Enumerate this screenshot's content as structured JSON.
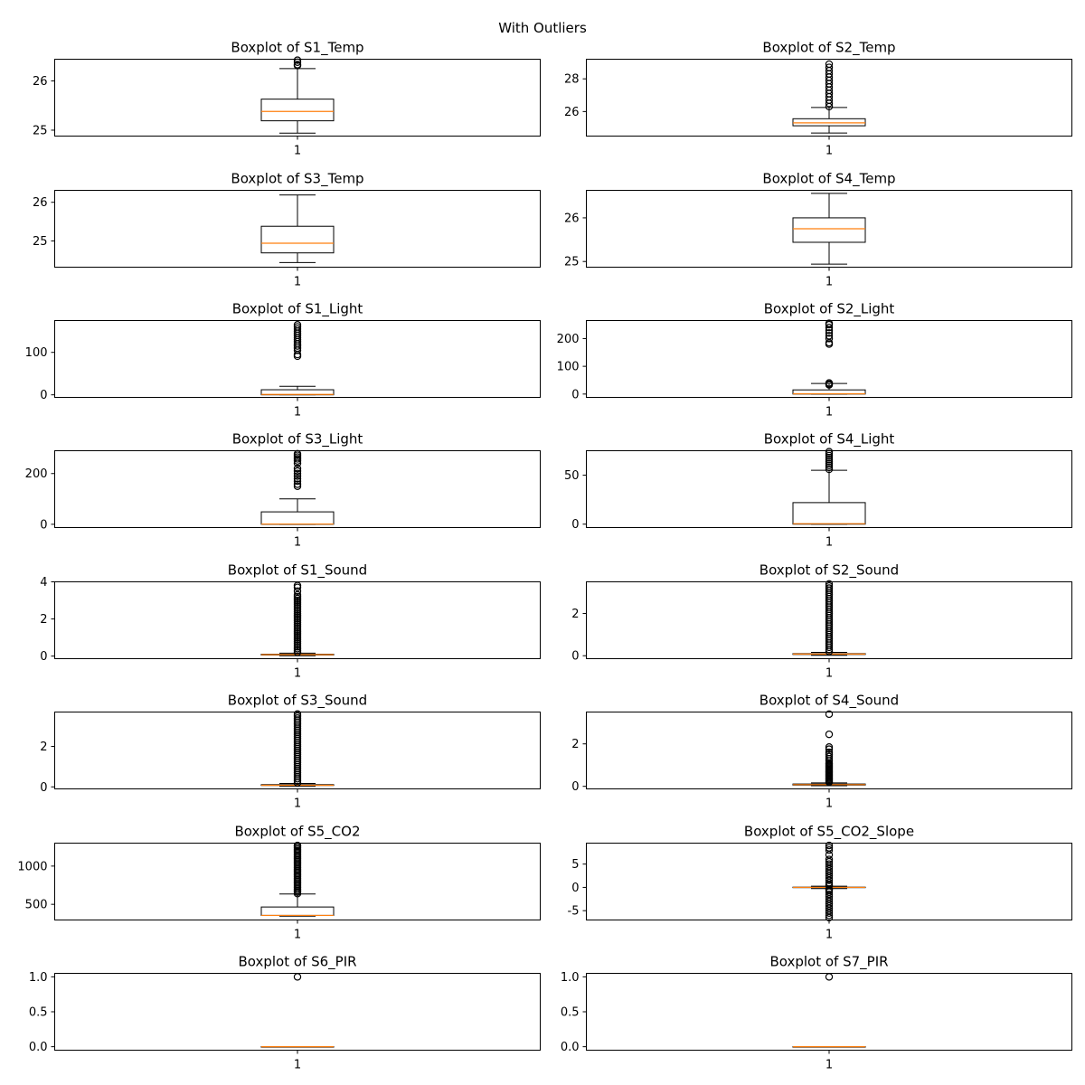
{
  "figure": {
    "suptitle": "With Outliers"
  },
  "colors": {
    "median": "#ff7f0e",
    "box": "#000000",
    "background": "#ffffff"
  },
  "chart_data": [
    {
      "type": "boxplot",
      "title": "Boxplot of S1_Temp",
      "xtick": "1",
      "ylim": [
        24.88,
        26.44
      ],
      "yticks": [
        25,
        26
      ],
      "whisker_low": 24.94,
      "q1": 25.19,
      "median": 25.38,
      "q3": 25.63,
      "whisker_high": 26.25,
      "outliers": [
        26.31,
        26.33,
        26.38,
        26.42
      ]
    },
    {
      "type": "boxplot",
      "title": "Boxplot of S2_Temp",
      "xtick": "1",
      "ylim": [
        24.5,
        29.2
      ],
      "yticks": [
        26,
        28
      ],
      "whisker_low": 24.69,
      "q1": 25.13,
      "median": 25.31,
      "q3": 25.56,
      "whisker_high": 26.25,
      "outliers": [
        26.3,
        26.5,
        26.7,
        26.9,
        27.1,
        27.3,
        27.5,
        27.7,
        27.9,
        28.1,
        28.3,
        28.5,
        28.7,
        28.9
      ]
    },
    {
      "type": "boxplot",
      "title": "Boxplot of S3_Temp",
      "xtick": "1",
      "ylim": [
        24.32,
        26.31
      ],
      "yticks": [
        25,
        26
      ],
      "whisker_low": 24.44,
      "q1": 24.69,
      "median": 24.94,
      "q3": 25.38,
      "whisker_high": 26.19,
      "outliers": []
    },
    {
      "type": "boxplot",
      "title": "Boxplot of S4_Temp",
      "xtick": "1",
      "ylim": [
        24.87,
        26.63
      ],
      "yticks": [
        25,
        26
      ],
      "whisker_low": 24.94,
      "q1": 25.44,
      "median": 25.75,
      "q3": 26.0,
      "whisker_high": 26.56,
      "outliers": []
    },
    {
      "type": "boxplot",
      "title": "Boxplot of S1_Light",
      "xtick": "1",
      "ylim": [
        -6,
        175
      ],
      "yticks": [
        0,
        100
      ],
      "whisker_low": 0,
      "q1": 0,
      "median": 1,
      "q3": 12,
      "whisker_high": 20,
      "outliers": [
        91,
        95,
        105,
        110,
        115,
        120,
        125,
        130,
        135,
        140,
        145,
        150,
        155,
        160,
        165
      ]
    },
    {
      "type": "boxplot",
      "title": "Boxplot of S2_Light",
      "xtick": "1",
      "ylim": [
        -12,
        265
      ],
      "yticks": [
        0,
        100,
        200
      ],
      "whisker_low": 0,
      "q1": 0,
      "median": 1,
      "q3": 15,
      "whisker_high": 38,
      "outliers": [
        33,
        36,
        40,
        180,
        185,
        200,
        210,
        220,
        230,
        240,
        250,
        255
      ]
    },
    {
      "type": "boxplot",
      "title": "Boxplot of S3_Light",
      "xtick": "1",
      "ylim": [
        -13,
        290
      ],
      "yticks": [
        0,
        200
      ],
      "whisker_low": 0,
      "q1": 0,
      "median": 1,
      "q3": 49,
      "whisker_high": 100,
      "outliers": [
        150,
        158,
        170,
        180,
        190,
        200,
        210,
        220,
        240,
        250,
        258,
        265,
        272,
        278
      ]
    },
    {
      "type": "boxplot",
      "title": "Boxplot of S4_Light",
      "xtick": "1",
      "ylim": [
        -3.5,
        75
      ],
      "yticks": [
        0,
        50
      ],
      "whisker_low": 0,
      "q1": 0,
      "median": 0.5,
      "q3": 22,
      "whisker_high": 55,
      "outliers": [
        56,
        58,
        60,
        62,
        64,
        66,
        68,
        70,
        72,
        74
      ]
    },
    {
      "type": "boxplot",
      "title": "Boxplot of S1_Sound",
      "xtick": "1",
      "ylim": [
        -0.14,
        4.0
      ],
      "yticks": [
        0,
        2,
        4
      ],
      "whisker_low": 0.02,
      "q1": 0.06,
      "median": 0.08,
      "q3": 0.1,
      "whisker_high": 0.16,
      "outliers": [
        0.2,
        0.3,
        0.4,
        0.5,
        0.6,
        0.7,
        0.8,
        0.9,
        1.0,
        1.1,
        1.2,
        1.3,
        1.4,
        1.5,
        1.6,
        1.7,
        1.8,
        1.9,
        2.0,
        2.1,
        2.2,
        2.3,
        2.4,
        2.5,
        2.6,
        2.7,
        2.8,
        2.9,
        3.0,
        3.1,
        3.2,
        3.3,
        3.5,
        3.7,
        3.8
      ]
    },
    {
      "type": "boxplot",
      "title": "Boxplot of S2_Sound",
      "xtick": "1",
      "ylim": [
        -0.14,
        3.5
      ],
      "yticks": [
        0,
        2
      ],
      "whisker_low": 0.02,
      "q1": 0.06,
      "median": 0.08,
      "q3": 0.1,
      "whisker_high": 0.16,
      "outliers": [
        0.2,
        0.3,
        0.4,
        0.5,
        0.6,
        0.7,
        0.8,
        0.9,
        1.0,
        1.1,
        1.2,
        1.3,
        1.4,
        1.5,
        1.6,
        1.7,
        1.8,
        1.9,
        2.0,
        2.1,
        2.2,
        2.3,
        2.4,
        2.5,
        2.6,
        2.7,
        2.8,
        2.9,
        3.0,
        3.1,
        3.2,
        3.3,
        3.4
      ]
    },
    {
      "type": "boxplot",
      "title": "Boxplot of S3_Sound",
      "xtick": "1",
      "ylim": [
        -0.1,
        3.7
      ],
      "yticks": [
        0,
        2
      ],
      "whisker_low": 0.03,
      "q1": 0.07,
      "median": 0.08,
      "q3": 0.11,
      "whisker_high": 0.17,
      "outliers": [
        0.2,
        0.3,
        0.4,
        0.5,
        0.6,
        0.7,
        0.8,
        0.9,
        1.0,
        1.1,
        1.2,
        1.3,
        1.4,
        1.5,
        1.6,
        1.7,
        1.8,
        1.9,
        2.0,
        2.1,
        2.2,
        2.3,
        2.4,
        2.5,
        2.6,
        2.7,
        2.8,
        2.9,
        3.0,
        3.1,
        3.2,
        3.3,
        3.4,
        3.5,
        3.6
      ]
    },
    {
      "type": "boxplot",
      "title": "Boxplot of S4_Sound",
      "xtick": "1",
      "ylim": [
        -0.12,
        3.5
      ],
      "yticks": [
        0,
        2
      ],
      "whisker_low": 0.03,
      "q1": 0.06,
      "median": 0.08,
      "q3": 0.11,
      "whisker_high": 0.16,
      "outliers": [
        0.2,
        0.25,
        0.3,
        0.35,
        0.4,
        0.45,
        0.5,
        0.55,
        0.6,
        0.65,
        0.7,
        0.75,
        0.8,
        0.85,
        0.9,
        0.95,
        1.0,
        1.05,
        1.1,
        1.2,
        1.3,
        1.4,
        1.5,
        1.6,
        1.75,
        1.85,
        2.45,
        3.4
      ]
    },
    {
      "type": "boxplot",
      "title": "Boxplot of S5_CO2",
      "xtick": "1",
      "ylim": [
        295,
        1300
      ],
      "yticks": [
        500,
        1000
      ],
      "whisker_low": 345,
      "q1": 355,
      "median": 355,
      "q3": 465,
      "whisker_high": 635,
      "outliers": [
        640,
        660,
        680,
        700,
        720,
        740,
        760,
        780,
        800,
        820,
        840,
        860,
        880,
        900,
        920,
        940,
        960,
        980,
        1000,
        1020,
        1040,
        1060,
        1080,
        1100,
        1120,
        1140,
        1160,
        1180,
        1200,
        1220,
        1240,
        1260,
        1270
      ]
    },
    {
      "type": "boxplot",
      "title": "Boxplot of S5_CO2_Slope",
      "xtick": "1",
      "ylim": [
        -7,
        9.5
      ],
      "yticks": [
        -5,
        0,
        5
      ],
      "whisker_low": -0.25,
      "q1": -0.05,
      "median": 0,
      "q3": 0.05,
      "whisker_high": 0.25,
      "outliers": [
        -6.5,
        -6,
        -5.5,
        -5,
        -4.5,
        -4,
        -3.5,
        -3,
        -2.5,
        -2,
        -1.5,
        -1,
        -0.6,
        -0.4,
        0.4,
        0.6,
        1,
        1.5,
        2,
        2.5,
        3,
        3.5,
        4,
        4.5,
        5,
        5.5,
        6,
        7,
        8,
        8.5,
        9
      ]
    },
    {
      "type": "boxplot",
      "title": "Boxplot of S6_PIR",
      "xtick": "1",
      "ylim": [
        -0.05,
        1.05
      ],
      "yticks": [
        0.0,
        0.5,
        1.0
      ],
      "whisker_low": 0,
      "q1": 0,
      "median": 0,
      "q3": 0,
      "whisker_high": 0,
      "outliers": [
        1.0
      ]
    },
    {
      "type": "boxplot",
      "title": "Boxplot of S7_PIR",
      "xtick": "1",
      "ylim": [
        -0.05,
        1.05
      ],
      "yticks": [
        0.0,
        0.5,
        1.0
      ],
      "whisker_low": 0,
      "q1": 0,
      "median": 0,
      "q3": 0,
      "whisker_high": 0,
      "outliers": [
        1.0
      ]
    }
  ]
}
